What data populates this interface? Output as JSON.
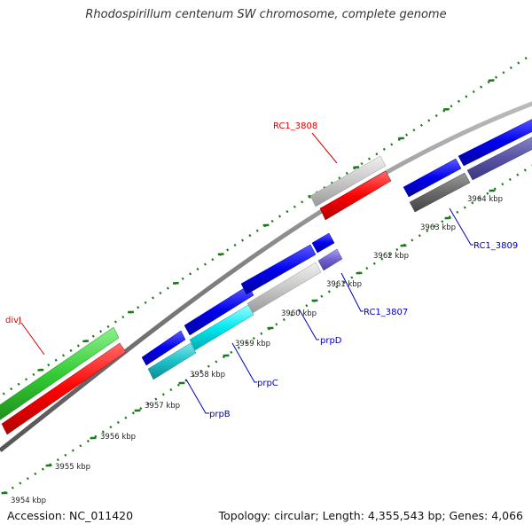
{
  "title": "Rhodospirillum centenum SW chromosome, complete genome",
  "footer": {
    "accession": "Accession: NC_011420",
    "summary": "Topology: circular; Length: 4,355,543 bp; Genes: 4,066"
  },
  "ticks": [
    "3954 kbp",
    "3955 kbp",
    "3956 kbp",
    "3957 kbp",
    "3958 kbp",
    "3959 kbp",
    "3960 kbp",
    "3961 kbp",
    "3962 kbp",
    "3963 kbp",
    "3964 kbp"
  ],
  "genes": {
    "divj": "divJ",
    "rc1_3808": "RC1_3808",
    "prpb": "prpB",
    "prpc": "prpC",
    "prpd": "prpD",
    "rc1_3807": "RC1_3807",
    "rc1_3809": "RC1_3809"
  },
  "colors": {
    "gene_label_red": "#dd0000",
    "gene_label_blue": "#0000bb",
    "tick_green": "#1a7a1a",
    "backbone": "#777777"
  }
}
